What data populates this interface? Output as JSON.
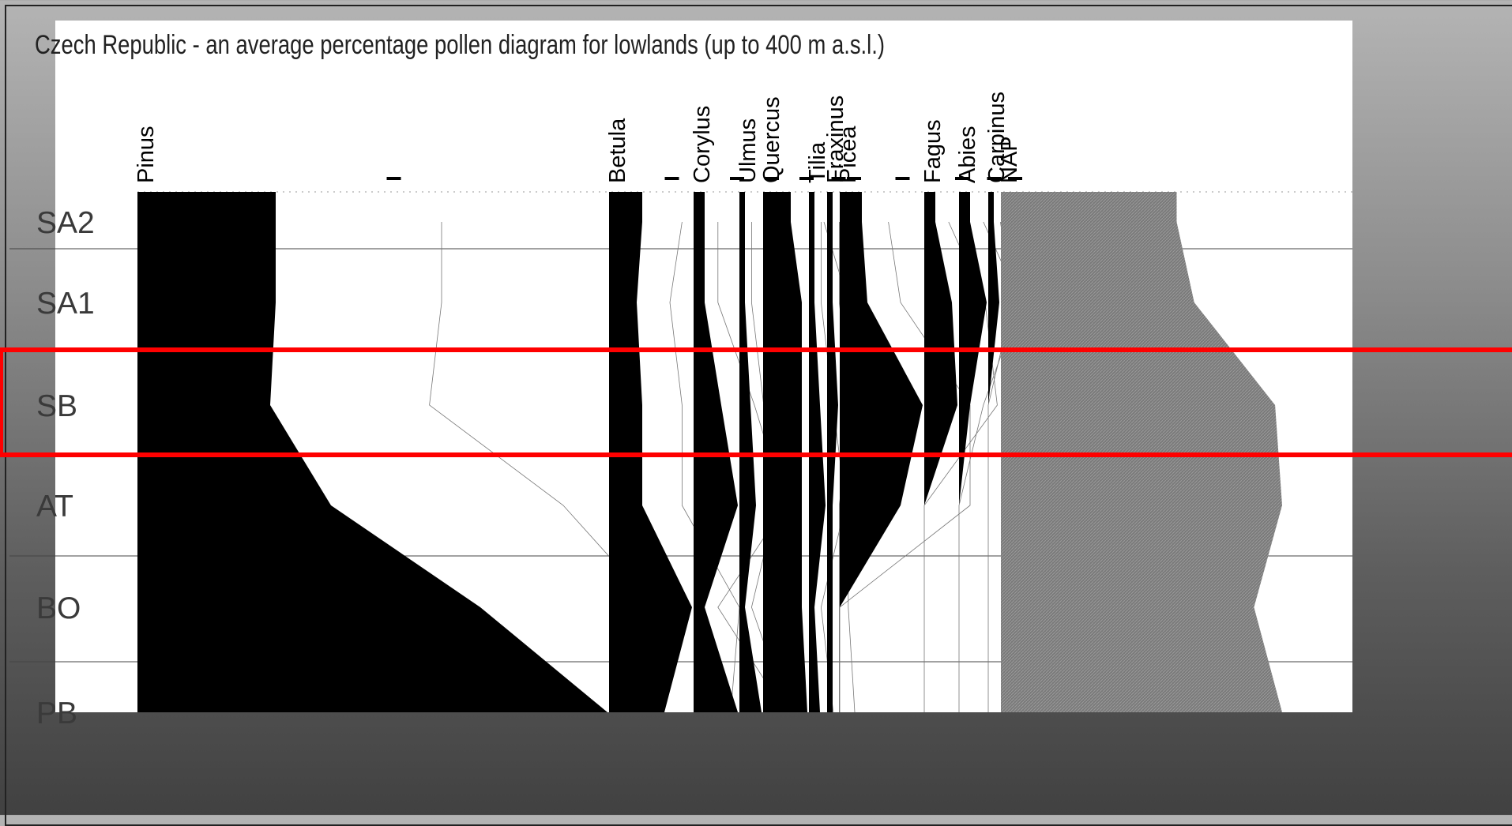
{
  "colors": {
    "fill": "#000000",
    "nap_fill": "#808080",
    "highlight": "#ff0000",
    "panel": "#ffffff"
  },
  "chart_data": {
    "type": "area",
    "title": "Czech Republic - an average percentage pollen diagram for lowlands (up to 400 m a.s.l.)",
    "zones": [
      "SA2",
      "SA1",
      "SB",
      "AT",
      "BO",
      "PB"
    ],
    "highlighted_zone": "SB",
    "taxa": [
      {
        "name": "Pinus",
        "values": [
          25,
          25,
          24,
          35,
          62,
          85
        ]
      },
      {
        "name": "Betula",
        "values": [
          6,
          5,
          6,
          6,
          15,
          10
        ]
      },
      {
        "name": "Corylus",
        "values": [
          2,
          2,
          5,
          8,
          2,
          8
        ]
      },
      {
        "name": "Ulmus",
        "values": [
          1,
          1,
          2,
          3,
          1,
          4
        ]
      },
      {
        "name": "Quercus",
        "values": [
          5,
          7,
          7,
          7,
          7,
          8
        ]
      },
      {
        "name": "Tilia",
        "values": [
          1,
          1,
          2,
          3,
          1,
          2
        ]
      },
      {
        "name": "Fraxinus",
        "values": [
          1,
          1,
          2,
          1,
          1,
          1
        ]
      },
      {
        "name": "Picea",
        "values": [
          4,
          5,
          15,
          11,
          0,
          0
        ]
      },
      {
        "name": "Fagus",
        "values": [
          2,
          5,
          6,
          0,
          0,
          0
        ]
      },
      {
        "name": "Abies",
        "values": [
          2,
          5,
          2,
          0,
          0,
          0
        ]
      },
      {
        "name": "Carpinus",
        "values": [
          1,
          2,
          0,
          0,
          0,
          0
        ]
      },
      {
        "name": "NAP",
        "values": [
          50,
          45,
          22,
          20,
          28,
          20
        ]
      }
    ]
  }
}
